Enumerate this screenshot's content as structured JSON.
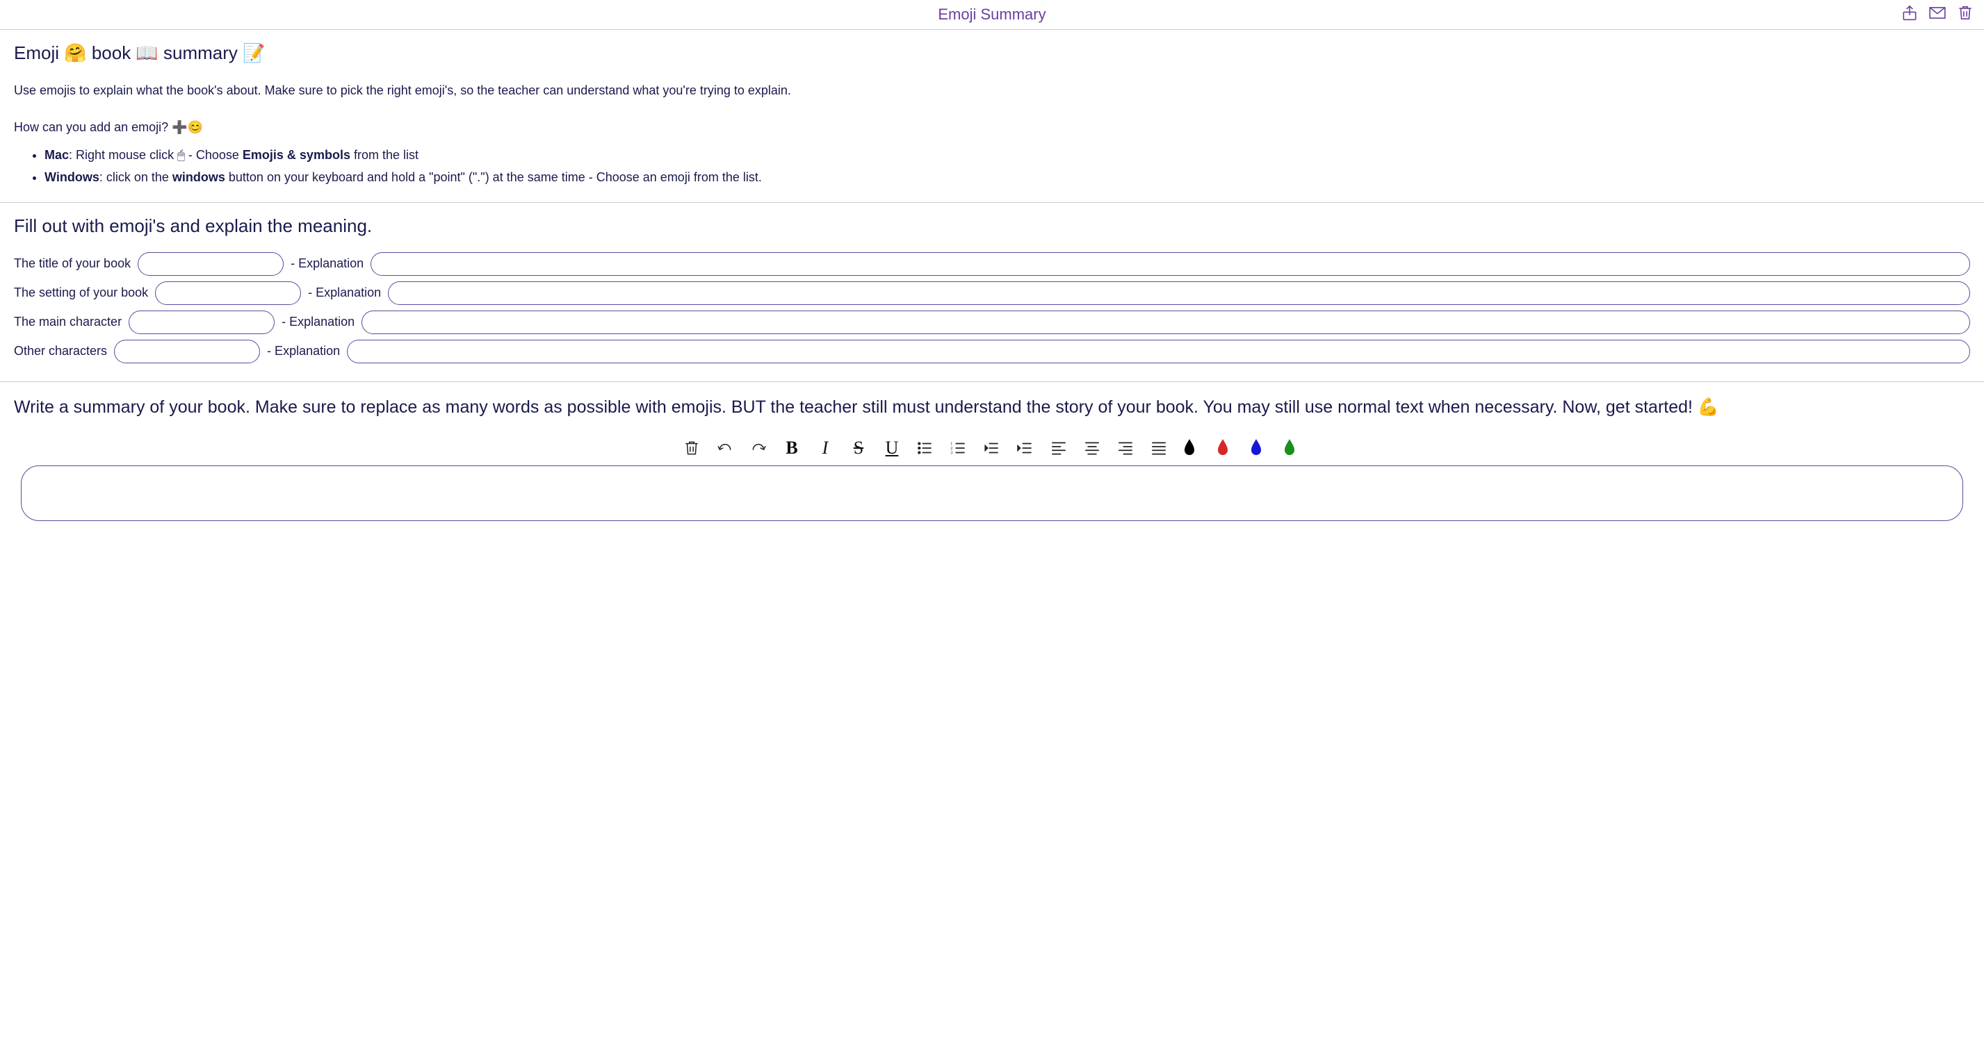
{
  "header": {
    "title": "Emoji Summary"
  },
  "intro": {
    "heading": "Emoji 🤗 book 📖 summary 📝",
    "description": "Use emojis to explain what the book's about. Make sure to pick the right emoji's, so the teacher can understand what you're trying to explain.",
    "howto": "How can you add an emoji? ➕😊",
    "bullet_mac_prefix": "Mac",
    "bullet_mac_rest": ": Right mouse click 🖱 - Choose ",
    "bullet_mac_bold": "Emojis & symbols",
    "bullet_mac_tail": " from the list",
    "bullet_win_prefix": "Windows",
    "bullet_win_rest": ": click on the ",
    "bullet_win_bold": "windows",
    "bullet_win_tail": " button on your keyboard and hold a \"point\" (\".\") at the same time - Choose an emoji from the list."
  },
  "form": {
    "heading": "Fill out with emoji's and explain the meaning.",
    "sep": " - Explanation ",
    "rows": [
      {
        "label": "The title of your book "
      },
      {
        "label": "The setting of your book "
      },
      {
        "label": "The main character "
      },
      {
        "label": "Other characters "
      }
    ]
  },
  "summary": {
    "prompt": "Write a summary of your book. Make sure to replace as many words as possible with emojis. BUT the teacher still must understand the story of your book. You may still use normal text when necessary. Now, get started! 💪"
  },
  "toolbar": {
    "text_buttons": {
      "bold": "B",
      "italic": "I",
      "strike": "S",
      "underline": "U"
    },
    "colors": [
      "#000000",
      "#d62828",
      "#1717d6",
      "#1a8f1a"
    ]
  }
}
